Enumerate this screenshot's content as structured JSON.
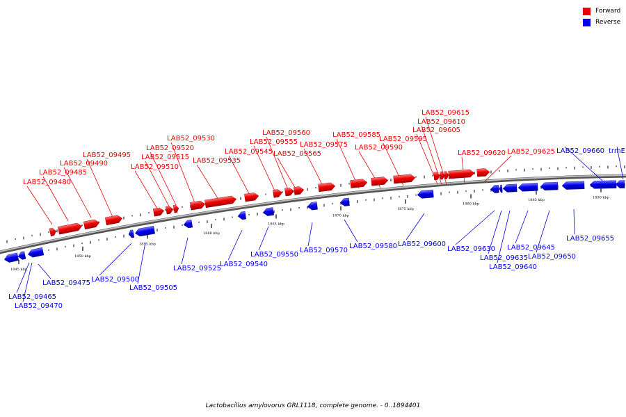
{
  "legend": {
    "forward_label": "Forward",
    "reverse_label": "Reverse",
    "forward_color": "#ee0000",
    "reverse_color": "#0000ee"
  },
  "caption": "Lactobacillus amylovorus GRL1118, complete genome. - 0..1894401",
  "axis_ticks": [
    "1845 kbp",
    "1850 kbp",
    "1855 kbp",
    "1860 kbp",
    "1865 kbp",
    "1870 kbp",
    "1875 kbp",
    "1880 kbp",
    "1885 kbp",
    "1890 kbp"
  ],
  "genes": [
    {
      "label": "LAB52_09465",
      "strand": "reverse"
    },
    {
      "label": "LAB52_09470",
      "strand": "reverse"
    },
    {
      "label": "LAB52_09475",
      "strand": "reverse"
    },
    {
      "label": "LAB52_09480",
      "strand": "forward"
    },
    {
      "label": "LAB52_09485",
      "strand": "forward"
    },
    {
      "label": "LAB52_09490",
      "strand": "forward"
    },
    {
      "label": "LAB52_09495",
      "strand": "forward"
    },
    {
      "label": "LAB52_09500",
      "strand": "reverse"
    },
    {
      "label": "LAB52_09505",
      "strand": "reverse"
    },
    {
      "label": "LAB52_09510",
      "strand": "forward"
    },
    {
      "label": "LAB52_09515",
      "strand": "forward"
    },
    {
      "label": "LAB52_09520",
      "strand": "forward"
    },
    {
      "label": "LAB52_09525",
      "strand": "reverse"
    },
    {
      "label": "LAB52_09530",
      "strand": "forward"
    },
    {
      "label": "LAB52_09535",
      "strand": "forward"
    },
    {
      "label": "LAB52_09540",
      "strand": "reverse"
    },
    {
      "label": "LAB52_09545",
      "strand": "forward"
    },
    {
      "label": "LAB52_09550",
      "strand": "reverse"
    },
    {
      "label": "LAB52_09555",
      "strand": "forward"
    },
    {
      "label": "LAB52_09560",
      "strand": "forward"
    },
    {
      "label": "LAB52_09565",
      "strand": "forward"
    },
    {
      "label": "LAB52_09570",
      "strand": "reverse"
    },
    {
      "label": "LAB52_09575",
      "strand": "forward"
    },
    {
      "label": "LAB52_09580",
      "strand": "reverse"
    },
    {
      "label": "LAB52_09585",
      "strand": "forward"
    },
    {
      "label": "LAB52_09590",
      "strand": "forward"
    },
    {
      "label": "LAB52_09595",
      "strand": "forward"
    },
    {
      "label": "LAB52_09600",
      "strand": "reverse"
    },
    {
      "label": "LAB52_09605",
      "strand": "forward"
    },
    {
      "label": "LAB52_09610",
      "strand": "forward"
    },
    {
      "label": "LAB52_09615",
      "strand": "forward"
    },
    {
      "label": "LAB52_09620",
      "strand": "forward"
    },
    {
      "label": "LAB52_09625",
      "strand": "forward"
    },
    {
      "label": "LAB52_09630",
      "strand": "reverse"
    },
    {
      "label": "LAB52_09635",
      "strand": "reverse"
    },
    {
      "label": "LAB52_09640",
      "strand": "reverse"
    },
    {
      "label": "LAB52_09645",
      "strand": "reverse"
    },
    {
      "label": "LAB52_09650",
      "strand": "reverse"
    },
    {
      "label": "LAB52_09655",
      "strand": "reverse"
    },
    {
      "label": "LAB52_09660",
      "strand": "reverse"
    },
    {
      "label": "trmE",
      "strand": "reverse"
    }
  ]
}
